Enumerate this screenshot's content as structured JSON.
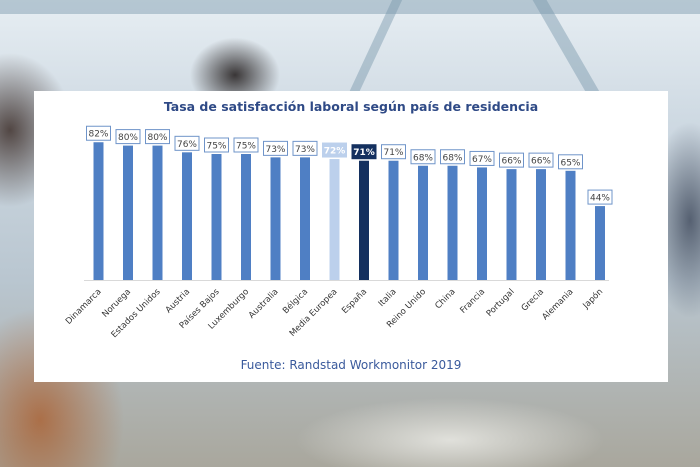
{
  "chart_data": {
    "type": "bar",
    "title": "Tasa de satisfacción laboral según país de residencia",
    "source": "Fuente: Randstad Workmonitor 2019",
    "xlabel": "",
    "ylabel": "",
    "ylim": [
      0,
      100
    ],
    "grid": false,
    "legend": "none",
    "categories": [
      "Dinamarca",
      "Noruega",
      "Estados Unidos",
      "Austria",
      "Países Bajos",
      "Luxemburgo",
      "Australia",
      "Bélgica",
      "Media Europea",
      "España",
      "Italia",
      "Reino Unido",
      "China",
      "Francia",
      "Portugal",
      "Grecia",
      "Alemania",
      "Japón"
    ],
    "values": [
      82,
      80,
      80,
      76,
      75,
      75,
      73,
      73,
      72,
      71,
      71,
      68,
      68,
      67,
      66,
      66,
      65,
      44
    ],
    "labels": [
      "82%",
      "80%",
      "80%",
      "76%",
      "75%",
      "75%",
      "73%",
      "73%",
      "72%",
      "71%",
      "71%",
      "68%",
      "68%",
      "67%",
      "66%",
      "66%",
      "65%",
      "44%"
    ],
    "colors": {
      "default": "#4f7fc4",
      "highlight_europe": "#bcd0ec",
      "highlight_spain": "#14305f",
      "label_border": "#6f94c9",
      "label_text": "#444444",
      "title": "#2f4a86"
    },
    "bar_styles": [
      "default",
      "default",
      "default",
      "default",
      "default",
      "default",
      "default",
      "default",
      "highlight_europe",
      "highlight_spain",
      "default",
      "default",
      "default",
      "default",
      "default",
      "default",
      "default",
      "default"
    ]
  }
}
